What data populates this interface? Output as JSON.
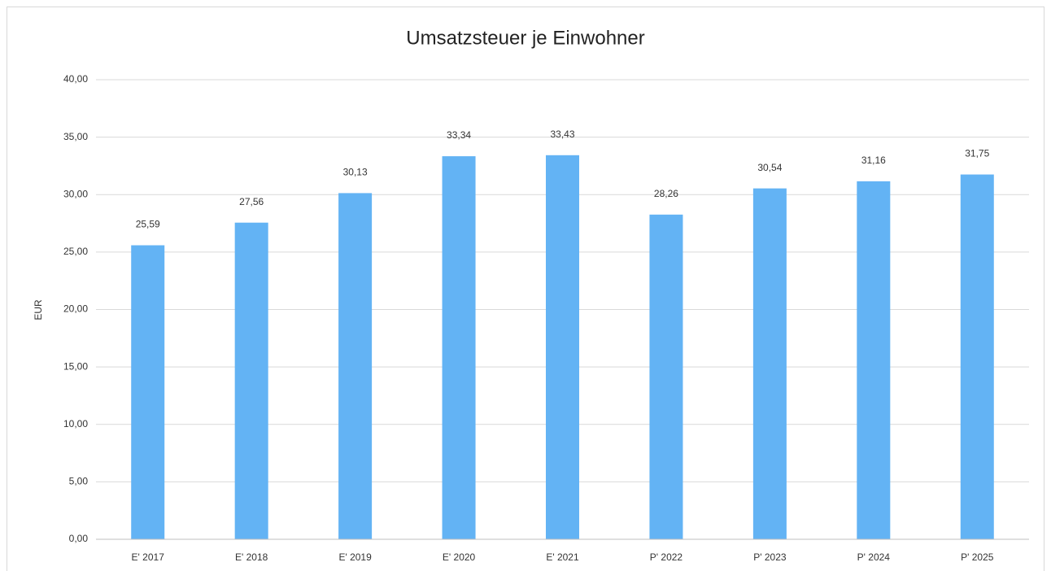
{
  "chart_data": {
    "type": "bar",
    "title": "Umsatzsteuer je Einwohner",
    "y_label": "EUR",
    "categories": [
      "E' 2017",
      "E' 2018",
      "E' 2019",
      "E' 2020",
      "E' 2021",
      "P' 2022",
      "P' 2023",
      "P' 2024",
      "P' 2025"
    ],
    "values": [
      25.59,
      27.56,
      30.13,
      33.34,
      33.43,
      28.26,
      30.54,
      31.16,
      31.75
    ],
    "value_labels": [
      "25,59",
      "27,56",
      "30,13",
      "33,34",
      "33,43",
      "28,26",
      "30,54",
      "31,16",
      "31,75"
    ],
    "color": "#63b3f4",
    "ylim": [
      0,
      40
    ],
    "yticks": [
      {
        "value": 0,
        "label": "0,00"
      },
      {
        "value": 5,
        "label": "5,00"
      },
      {
        "value": 10,
        "label": "10,00"
      },
      {
        "value": 15,
        "label": "15,00"
      },
      {
        "value": 20,
        "label": "20,00"
      },
      {
        "value": 25,
        "label": "25,00"
      },
      {
        "value": 30,
        "label": "30,00"
      },
      {
        "value": 35,
        "label": "35,00"
      },
      {
        "value": 40,
        "label": "40,00"
      }
    ],
    "grid": true
  }
}
